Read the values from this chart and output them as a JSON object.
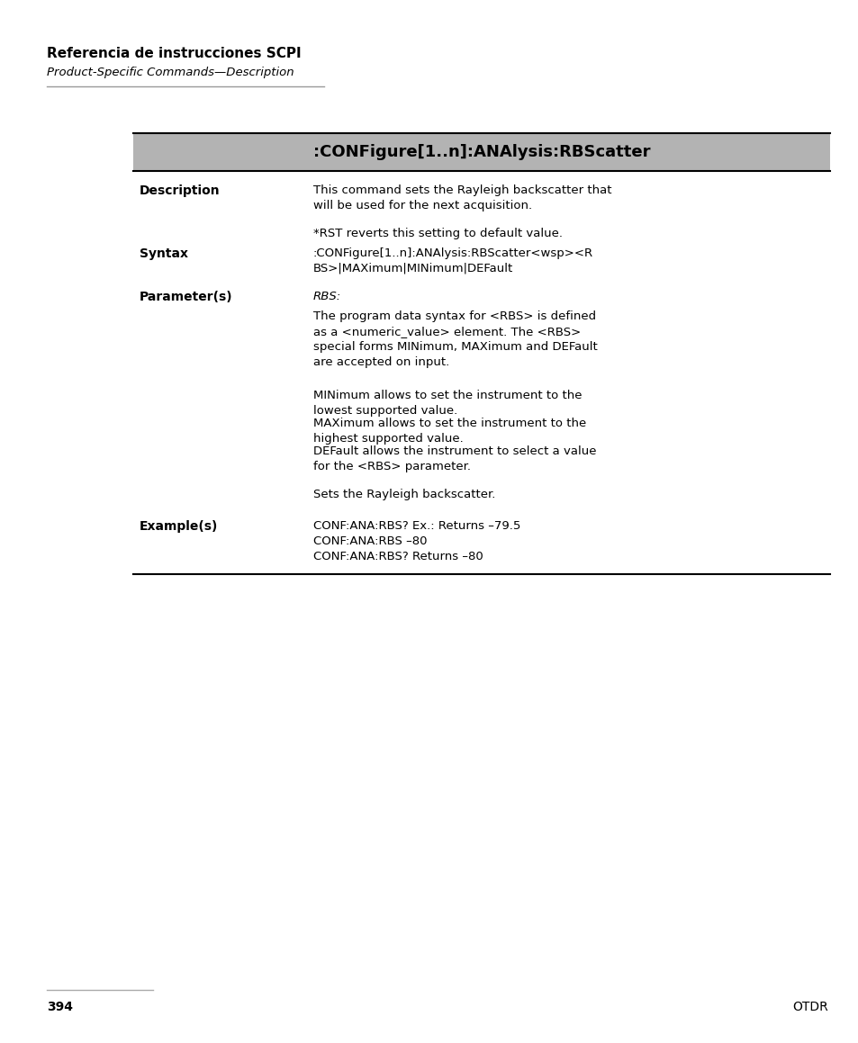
{
  "page_title": "Referencia de instrucciones SCPI",
  "page_subtitle": "Product-Specific Commands—Description",
  "header_text": ":CONFigure[1..n]:ANAlysis:RBScatter",
  "header_bg": "#b3b3b3",
  "header_text_color": "#000000",
  "bg_color": "#ffffff",
  "desc_line1": "This command sets the Rayleigh backscatter that",
  "desc_line2": "will be used for the next acquisition.",
  "desc_line3": "*RST reverts this setting to default value.",
  "syntax_line1": ":CONFigure[1..n]:ANAlysis:RBScatter<wsp><R",
  "syntax_line2": "BS>|MAXimum|MINimum|DEFault",
  "param_rbs": "RBS:",
  "param_body1": "The program data syntax for <RBS> is defined",
  "param_body2": "as a <numeric_value> element. The <RBS>",
  "param_body3": "special forms MINimum, MAXimum and DEFault",
  "param_body4": "are accepted on input.",
  "param_min1": "MINimum allows to set the instrument to the",
  "param_min2": "lowest supported value.",
  "param_max1": "MAXimum allows to set the instrument to the",
  "param_max2": "highest supported value.",
  "param_def1": "DEFault allows the instrument to select a value",
  "param_def2": "for the <RBS> parameter.",
  "param_sets": "Sets the Rayleigh backscatter.",
  "example1": "CONF:ANA:RBS? Ex.: Returns –79.5",
  "example2": "CONF:ANA:RBS –80",
  "example3": "CONF:ANA:RBS? Returns –80",
  "footer_page": "394",
  "footer_right": "OTDR"
}
